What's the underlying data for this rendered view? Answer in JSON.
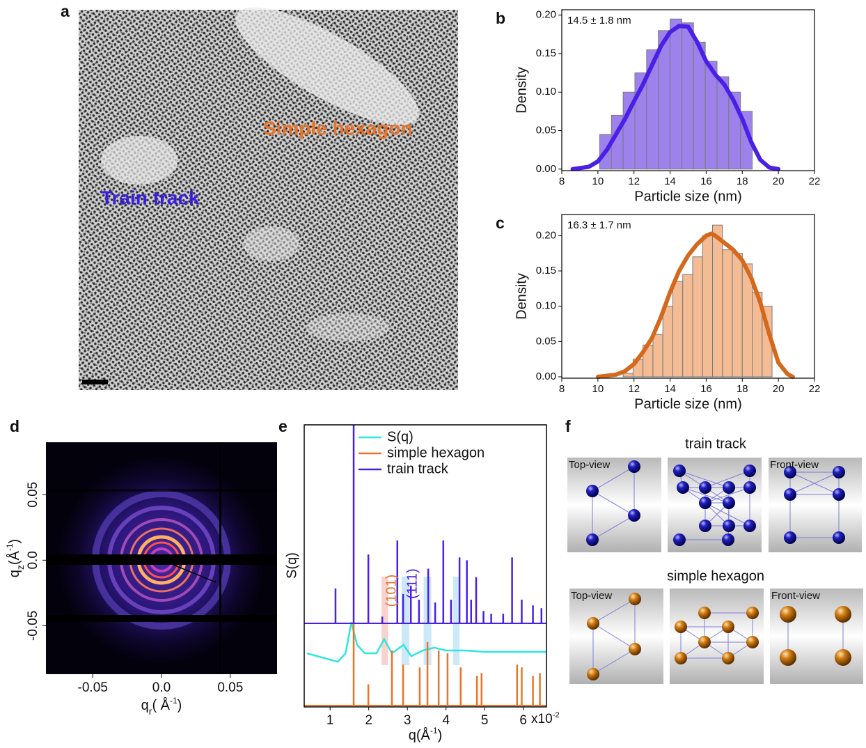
{
  "panel_a": {
    "label": "a",
    "simple_hexagon_label": "Simple hexagon",
    "train_track_label": "Train track"
  },
  "chart_data": [
    {
      "type": "histogram",
      "label": "b",
      "annotation": "14.5 ± 1.8 nm",
      "xlabel": "Particle size (nm)",
      "ylabel": "Density",
      "bins": [
        10.1,
        10.75,
        11.4,
        12.05,
        12.7,
        13.35,
        14.0,
        14.65,
        15.3,
        15.95,
        16.6,
        17.25,
        17.9,
        18.55
      ],
      "values": [
        0.045,
        0.07,
        0.1,
        0.125,
        0.155,
        0.18,
        0.195,
        0.19,
        0.165,
        0.14,
        0.12,
        0.1,
        0.075
      ],
      "color": "#9c82ea",
      "edgecolor": "#7a7a7a",
      "kde": {
        "color": "#4a1fe6",
        "x": [
          8.6,
          9.5,
          10,
          10.5,
          11,
          11.5,
          12,
          12.5,
          13,
          13.5,
          14,
          14.5,
          15,
          15.5,
          16,
          16.5,
          17,
          17.5,
          18,
          18.5,
          19,
          19.5,
          20
        ],
        "values": [
          0,
          0.003,
          0.01,
          0.025,
          0.045,
          0.065,
          0.088,
          0.11,
          0.135,
          0.16,
          0.178,
          0.186,
          0.185,
          0.165,
          0.14,
          0.123,
          0.11,
          0.09,
          0.065,
          0.035,
          0.012,
          0.002,
          0
        ]
      },
      "xlim": [
        8,
        22
      ],
      "xticks": [
        8,
        10,
        12,
        14,
        16,
        18,
        20,
        22
      ],
      "ylim": [
        -0.002,
        0.207
      ],
      "yticks": [
        {
          "value": 0,
          "label": "0.00"
        },
        {
          "value": 0.05,
          "label": "0.05"
        },
        {
          "value": 0.1,
          "label": "0.10"
        },
        {
          "value": 0.15,
          "label": "0.15"
        },
        {
          "value": 0.2,
          "label": "0.20"
        }
      ]
    },
    {
      "type": "histogram",
      "label": "c",
      "annotation": "16.3 ± 1.7 nm",
      "xlabel": "Particle size (nm)",
      "ylabel": "Density",
      "bins": [
        11.4,
        11.95,
        12.5,
        13.05,
        13.6,
        14.15,
        14.7,
        15.25,
        15.8,
        16.35,
        16.9,
        17.45,
        18.0,
        18.55,
        19.1,
        19.65
      ],
      "values": [
        0.005,
        0.025,
        0.045,
        0.06,
        0.1,
        0.135,
        0.145,
        0.17,
        0.2,
        0.215,
        0.18,
        0.175,
        0.16,
        0.12,
        0.1
      ],
      "color": "#f4bc94",
      "edgecolor": "#7a7a7a",
      "kde": {
        "color": "#d4691e",
        "x": [
          10,
          11,
          11.5,
          12,
          12.5,
          13,
          13.5,
          14,
          14.5,
          15,
          15.5,
          16,
          16.3,
          16.5,
          17,
          17.5,
          18,
          18.5,
          19,
          19.5,
          20,
          20.5,
          20.8
        ],
        "values": [
          0,
          0.003,
          0.008,
          0.018,
          0.035,
          0.055,
          0.085,
          0.12,
          0.15,
          0.172,
          0.188,
          0.2,
          0.203,
          0.2,
          0.19,
          0.18,
          0.165,
          0.14,
          0.105,
          0.06,
          0.02,
          0.004,
          0
        ]
      },
      "xlim": [
        8,
        22
      ],
      "xticks": [
        8,
        10,
        12,
        14,
        16,
        18,
        20,
        22
      ],
      "ylim": [
        -0.002,
        0.23
      ],
      "yticks": [
        {
          "value": 0,
          "label": "0.00"
        },
        {
          "value": 0.05,
          "label": "0.05"
        },
        {
          "value": 0.1,
          "label": "0.10"
        },
        {
          "value": 0.15,
          "label": "0.15"
        },
        {
          "value": 0.2,
          "label": "0.20"
        }
      ]
    },
    {
      "type": "image",
      "label": "d",
      "xlabel": {
        "symbol": "q",
        "subscript": "r",
        "unit_open": "( Å",
        "unit_exponent": "-1",
        "unit_close": ")"
      },
      "ylabel": {
        "symbol": "q",
        "subscript": "z",
        "unit_open": "(Å",
        "unit_exponent": "-1",
        "unit_close": ")"
      },
      "xlim": [
        -0.084,
        0.084
      ],
      "xticks": [
        -0.05,
        {
          "value": 0,
          "label": "0.0"
        },
        0.05
      ],
      "ylim": [
        -0.087,
        0.09
      ],
      "yticks": [
        -0.05,
        {
          "value": 0,
          "label": "0.0"
        },
        0.05
      ]
    },
    {
      "type": "line",
      "label": "e",
      "ylabel": "S(q)",
      "xlabel": {
        "symbol": "q",
        "unit_open": "(Å",
        "unit_exponent": "-1",
        "unit_close": ")"
      },
      "x_multiplier": "x10",
      "x_multiplier_exponent": "-2",
      "xlim": [
        0.33,
        6.6
      ],
      "xticks": [
        1,
        2,
        3,
        4,
        5,
        6
      ],
      "ylim": [
        0,
        1
      ],
      "series": [
        {
          "name": "S(q)",
          "color": "#2ee6e0",
          "style": "line",
          "x": [
            0.4,
            1.2,
            1.4,
            1.55,
            1.7,
            1.9,
            2.2,
            2.4,
            2.6,
            2.9,
            3.1,
            3.4,
            3.7,
            4.0,
            4.5,
            5.0,
            6.6
          ],
          "values": [
            0.19,
            0.16,
            0.19,
            0.3,
            0.22,
            0.19,
            0.19,
            0.24,
            0.19,
            0.22,
            0.18,
            0.2,
            0.21,
            0.2,
            0.2,
            0.195,
            0.195
          ]
        },
        {
          "name": "simple hexagon",
          "color": "#e8742a",
          "style": "sticks",
          "x": [
            1.61,
            1.99,
            2.6,
            2.89,
            3.32,
            3.52,
            3.81,
            4.04,
            4.38,
            4.8,
            4.92,
            5.84,
            5.96,
            6.25,
            6.43
          ],
          "values": [
            0.3,
            0.08,
            0.2,
            0.15,
            0.14,
            0.23,
            0.2,
            0.19,
            0.14,
            0.11,
            0.12,
            0.15,
            0.14,
            0.11,
            0.12
          ]
        },
        {
          "name": "train track",
          "color": "#4a1fe6",
          "style": "sticks",
          "x": [
            1.14,
            1.61,
            1.99,
            2.35,
            2.74,
            2.89,
            3.09,
            3.3,
            3.54,
            3.72,
            3.93,
            4.13,
            4.35,
            4.54,
            4.65,
            4.78,
            4.97,
            5.17,
            5.48,
            5.71,
            5.96,
            6.25,
            6.47
          ],
          "values": [
            0.42,
            1.0,
            0.54,
            0.32,
            0.59,
            0.4,
            0.43,
            0.38,
            0.49,
            0.37,
            0.59,
            0.38,
            0.53,
            0.52,
            0.38,
            0.46,
            0.34,
            0.33,
            0.33,
            0.53,
            0.38,
            0.36,
            0.35
          ]
        }
      ],
      "highlight_bands": [
        {
          "x": [
            2.33,
            2.5
          ],
          "color": "#f7c6c0"
        },
        {
          "x": [
            2.85,
            3.05
          ],
          "color": "#bfe3f5"
        },
        {
          "x": [
            3.42,
            3.62
          ],
          "color": "#bfe3f5"
        },
        {
          "x": [
            4.18,
            4.35
          ],
          "color": "#bfe3f5"
        }
      ],
      "annotations": [
        {
          "text": "(101)",
          "color": "#e8742a"
        },
        {
          "text": "(111)",
          "color": "#4a1fe6"
        }
      ]
    }
  ],
  "panel_f": {
    "label": "f",
    "groups": [
      {
        "title": "train track",
        "top_view_label": "Top-view",
        "front_view_label": "Front-view"
      },
      {
        "title": "simple hexagon",
        "top_view_label": "Top-view",
        "front_view_label": "Front-view"
      }
    ]
  }
}
